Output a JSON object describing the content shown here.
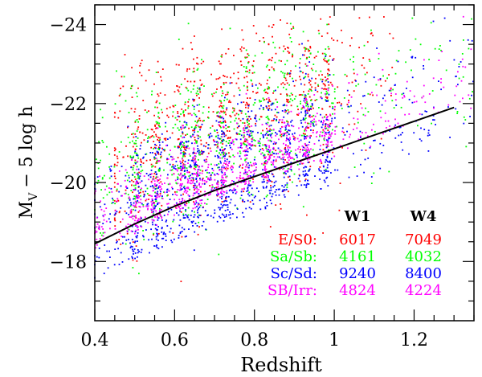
{
  "chart_data": {
    "type": "scatter",
    "xlabel": "Redshift",
    "ylabel_main": "M",
    "ylabel_sub": "V",
    "ylabel_rest": "− 5 log h",
    "xlim": [
      0.4,
      1.35
    ],
    "ylim": [
      -16.5,
      -24.5
    ],
    "y_inverted": true,
    "x_ticks": [
      0.4,
      0.6,
      0.8,
      1.0,
      1.2
    ],
    "x_tick_labels": [
      "0.4",
      "0.6",
      "0.8",
      "1",
      "1.2"
    ],
    "y_ticks": [
      -18,
      -20,
      -22,
      -24
    ],
    "y_tick_labels": [
      "−18",
      "−20",
      "−22",
      "−24"
    ],
    "grid": false,
    "limit_line": {
      "x": [
        0.4,
        0.5,
        0.6,
        0.7,
        0.8,
        0.9,
        1.0,
        1.1,
        1.2,
        1.3
      ],
      "y": [
        -18.45,
        -18.95,
        -19.4,
        -19.8,
        -20.15,
        -20.5,
        -20.85,
        -21.2,
        -21.55,
        -21.9
      ]
    },
    "series": [
      {
        "name": "E/S0:",
        "color": "#ff0000",
        "w1": "6017",
        "w4": "7049",
        "z_range": [
          0.45,
          1.15
        ],
        "mag_range": [
          -19.0,
          -23.0
        ]
      },
      {
        "name": "Sa/Sb:",
        "color": "#00ff00",
        "w1": "4161",
        "w4": "4032",
        "z_range": [
          0.4,
          1.35
        ],
        "mag_range": [
          -18.5,
          -23.3
        ]
      },
      {
        "name": "Sc/Sd:",
        "color": "#0000ff",
        "w1": "9240",
        "w4": "8400",
        "z_range": [
          0.4,
          1.35
        ],
        "mag_range": [
          -18.0,
          -22.8
        ]
      },
      {
        "name": "SB/Irr:",
        "color": "#ff00ff",
        "w1": "4824",
        "w4": "4224",
        "z_range": [
          0.4,
          1.35
        ],
        "mag_range": [
          -17.5,
          -22.0
        ]
      }
    ],
    "table_headers": [
      "W1",
      "W4"
    ]
  }
}
